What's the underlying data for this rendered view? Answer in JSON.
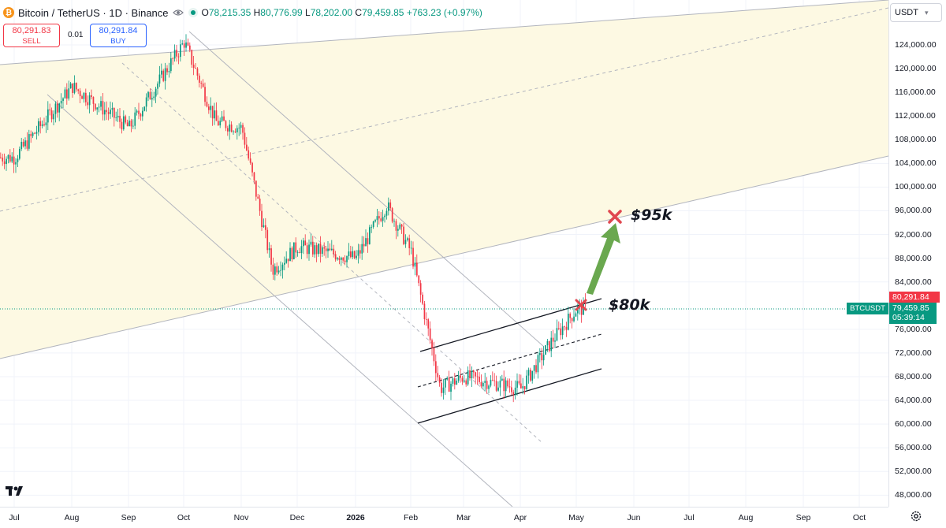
{
  "header": {
    "coin_glyph": "₿",
    "title": "Bitcoin / TetherUS · 1D · Binance",
    "ohlc": [
      {
        "key": "O",
        "value": "78,215.35"
      },
      {
        "key": "H",
        "value": "80,776.99"
      },
      {
        "key": "L",
        "value": "78,202.00"
      },
      {
        "key": "C",
        "value": "79,459.85"
      }
    ],
    "change": "+763.23 (+0.97%)"
  },
  "trade": {
    "sell_price": "80,291.83",
    "sell_label": "SELL",
    "spread": "0.01",
    "buy_price": "80,291.84",
    "buy_label": "BUY"
  },
  "currency": "USDT",
  "price_axis": {
    "labels": [
      "124,000.00",
      "120,000.00",
      "116,000.00",
      "112,000.00",
      "108,000.00",
      "104,000.00",
      "100,000.00",
      "96,000.00",
      "92,000.00",
      "88,000.00",
      "84,000.00",
      "76,000.00",
      "72,000.00",
      "68,000.00",
      "64,000.00",
      "60,000.00",
      "56,000.00",
      "52,000.00",
      "48,000.00"
    ],
    "ask_price": "80,291.84",
    "last_price": "79,459.85",
    "countdown": "05:39:14",
    "ticker": "BTCUSDT"
  },
  "time_axis": {
    "labels": [
      "Jul",
      "Aug",
      "Sep",
      "Oct",
      "Nov",
      "Dec",
      "2026",
      "Feb",
      "Mar",
      "Apr",
      "May",
      "Jun",
      "Jul",
      "Aug",
      "Sep",
      "Oct"
    ],
    "bold_label": "2026"
  },
  "annotations": {
    "target_high": "$95k",
    "target_low": "$80k"
  },
  "colors": {
    "up": "#089981",
    "down": "#f23645",
    "highlight_zone": "#fdf9e3",
    "arrow": "#6aa84f",
    "marker": "#e0474f"
  },
  "icons": {
    "settings": "gear-icon",
    "logo": "tradingview-logo"
  },
  "chart_data": {
    "type": "candlestick",
    "symbol": "BTCUSDT",
    "interval": "1D",
    "x_axis": [
      "Jul",
      "Aug",
      "Sep",
      "Oct",
      "Nov",
      "Dec",
      "2026",
      "Feb",
      "Mar",
      "Apr",
      "May",
      "Jun",
      "Jul",
      "Aug",
      "Sep",
      "Oct"
    ],
    "ylim": [
      46000,
      128000
    ],
    "key_prices": {
      "last": 79459.85,
      "ask": 80291.84
    },
    "price_path": [
      {
        "x": "Jul",
        "y": 105000
      },
      {
        "x": "Aug",
        "y": 117000
      },
      {
        "x": "Sep",
        "y": 110000
      },
      {
        "x": "Oct",
        "y": 124500
      },
      {
        "x": "Oct",
        "y": 111000
      },
      {
        "x": "Nov",
        "y": 110000
      },
      {
        "x": "Nov",
        "y": 86000
      },
      {
        "x": "Dec",
        "y": 90000
      },
      {
        "x": "2026",
        "y": 88000
      },
      {
        "x": "2026",
        "y": 97000
      },
      {
        "x": "Feb",
        "y": 89000
      },
      {
        "x": "Feb",
        "y": 66000
      },
      {
        "x": "Mar",
        "y": 68000
      },
      {
        "x": "Apr",
        "y": 66000
      },
      {
        "x": "Apr",
        "y": 74000
      },
      {
        "x": "May",
        "y": 79460
      }
    ],
    "annotations": [
      "$95k",
      "$80k"
    ]
  }
}
